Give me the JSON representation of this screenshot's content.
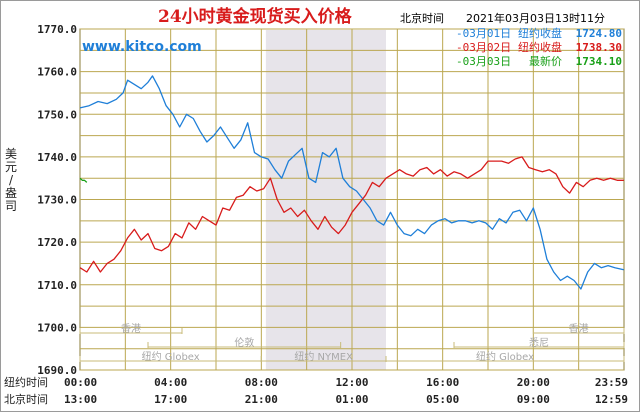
{
  "header": {
    "title": "24小时黄金现货买入价格",
    "timezone_label": "北京时间",
    "timestamp": "2021年03月03日13时11分",
    "site": "www.kitco.com"
  },
  "legend": [
    {
      "date": "-03月01日",
      "label": "纽约收盘",
      "value": "1724.80",
      "color": "#1f7fd8"
    },
    {
      "date": "-03月02日",
      "label": "纽约收盘",
      "value": "1738.30",
      "color": "#d81c1c"
    },
    {
      "date": "-03月03日",
      "label": "最新价",
      "value": "1734.10",
      "color": "#18a018"
    }
  ],
  "yaxis_label_chars": [
    "美",
    "元",
    "/",
    "盎",
    "司"
  ],
  "xaxis_rows": [
    {
      "label": "纽约时间",
      "ticks": [
        "00:00",
        "04:00",
        "08:00",
        "12:00",
        "16:00",
        "20:00",
        "23:59"
      ]
    },
    {
      "label": "北京时间",
      "ticks": [
        "13:00",
        "17:00",
        "21:00",
        "01:00",
        "05:00",
        "09:00",
        "12:59"
      ]
    }
  ],
  "markets": [
    {
      "name": "香港",
      "start": 0,
      "end": 4.5,
      "row": 0
    },
    {
      "name": "香港",
      "start": 20,
      "end": 24,
      "row": 0
    },
    {
      "name": "伦敦",
      "start": 3,
      "end": 11.5,
      "row": 1
    },
    {
      "name": "悉尼",
      "start": 16.5,
      "end": 24,
      "row": 1
    },
    {
      "name": "纽约 Globex",
      "start": 0,
      "end": 8,
      "row": 2
    },
    {
      "name": "纽约 NYMEX",
      "start": 8,
      "end": 13.5,
      "row": 2
    },
    {
      "name": "纽约 Globex",
      "start": 13.5,
      "end": 24,
      "row": 2
    }
  ],
  "chart_data": {
    "type": "line",
    "title": "24小时黄金现货买入价格",
    "ylabel": "美元/盎司",
    "xlabel": "",
    "ylim": [
      1690,
      1770
    ],
    "xlim": [
      0,
      24
    ],
    "y_ticks": [
      "1690.0",
      "1700.0",
      "1710.0",
      "1720.0",
      "1730.0",
      "1740.0",
      "1750.0",
      "1760.0",
      "1770.0"
    ],
    "shaded_range": [
      8.2,
      13.5
    ],
    "grid": true,
    "series": [
      {
        "name": "03月01日",
        "color": "#1f7fd8",
        "x": [
          0,
          0.4,
          0.8,
          1.2,
          1.6,
          1.9,
          2.1,
          2.4,
          2.7,
          3.0,
          3.2,
          3.5,
          3.8,
          4.1,
          4.4,
          4.7,
          5.0,
          5.3,
          5.6,
          5.9,
          6.2,
          6.5,
          6.8,
          7.1,
          7.4,
          7.7,
          8.0,
          8.3,
          8.6,
          8.9,
          9.2,
          9.5,
          9.8,
          10.1,
          10.4,
          10.7,
          11.0,
          11.3,
          11.6,
          11.9,
          12.2,
          12.5,
          12.8,
          13.1,
          13.4,
          13.7,
          14.0,
          14.3,
          14.6,
          14.9,
          15.2,
          15.5,
          15.8,
          16.1,
          16.4,
          16.7,
          17.0,
          17.3,
          17.6,
          17.9,
          18.2,
          18.5,
          18.8,
          19.1,
          19.4,
          19.7,
          20.0,
          20.3,
          20.6,
          20.9,
          21.2,
          21.5,
          21.8,
          22.1,
          22.4,
          22.7,
          23.0,
          23.3,
          23.6,
          23.99
        ],
        "y": [
          1751.5,
          1752,
          1753,
          1752.5,
          1753.5,
          1755,
          1758,
          1757,
          1756,
          1757.5,
          1759,
          1756,
          1752,
          1750,
          1747,
          1750,
          1749,
          1746,
          1743.5,
          1745,
          1747,
          1744.5,
          1742,
          1744,
          1748,
          1741,
          1740,
          1739.5,
          1737,
          1735,
          1739,
          1740.5,
          1742,
          1735,
          1734,
          1741,
          1740,
          1742,
          1735,
          1733,
          1732,
          1730,
          1728,
          1725,
          1724,
          1727,
          1724,
          1722,
          1721.5,
          1723,
          1722,
          1724,
          1725,
          1725.5,
          1724.5,
          1725,
          1725,
          1724.5,
          1725,
          1724.5,
          1723,
          1725.5,
          1724.5,
          1727,
          1727.5,
          1725,
          1728,
          1723,
          1716,
          1713,
          1711,
          1712,
          1711,
          1709,
          1713,
          1715,
          1714,
          1714.5,
          1714,
          1713.5
        ]
      },
      {
        "name": "03月02日",
        "color": "#d81c1c",
        "x": [
          0,
          0.3,
          0.6,
          0.9,
          1.2,
          1.5,
          1.8,
          2.1,
          2.4,
          2.7,
          3.0,
          3.3,
          3.6,
          3.9,
          4.2,
          4.5,
          4.8,
          5.1,
          5.4,
          5.7,
          6.0,
          6.3,
          6.6,
          6.9,
          7.2,
          7.5,
          7.8,
          8.1,
          8.4,
          8.7,
          9.0,
          9.3,
          9.6,
          9.9,
          10.2,
          10.5,
          10.8,
          11.1,
          11.4,
          11.7,
          12.0,
          12.3,
          12.6,
          12.9,
          13.2,
          13.5,
          13.8,
          14.1,
          14.4,
          14.7,
          15.0,
          15.3,
          15.6,
          15.9,
          16.2,
          16.5,
          16.8,
          17.1,
          17.4,
          17.7,
          18.0,
          18.3,
          18.6,
          18.9,
          19.2,
          19.5,
          19.8,
          20.1,
          20.4,
          20.7,
          21.0,
          21.3,
          21.6,
          21.9,
          22.2,
          22.5,
          22.8,
          23.1,
          23.4,
          23.7,
          23.99
        ],
        "y": [
          1714,
          1713,
          1715.5,
          1713,
          1715,
          1716,
          1718,
          1721,
          1723,
          1720.5,
          1722,
          1718.5,
          1718,
          1719,
          1722,
          1721,
          1724.5,
          1723,
          1726,
          1725,
          1724,
          1728,
          1727.5,
          1730.5,
          1731,
          1733,
          1732,
          1732.5,
          1735,
          1730,
          1727,
          1728,
          1726,
          1727.5,
          1725,
          1723,
          1726,
          1723.5,
          1722,
          1724,
          1727,
          1729,
          1731,
          1734,
          1733,
          1735,
          1736,
          1737,
          1736,
          1735.5,
          1737,
          1737.5,
          1736,
          1737,
          1735.5,
          1736.5,
          1736,
          1735,
          1736,
          1737,
          1739,
          1739,
          1739,
          1738.5,
          1739.5,
          1740,
          1737.5,
          1737,
          1736.5,
          1737,
          1736,
          1733,
          1731.5,
          1734,
          1733,
          1734.5,
          1735,
          1734.5,
          1735,
          1734.5,
          1734.5
        ]
      },
      {
        "name": "03月03日",
        "color": "#18a018",
        "x": [
          0,
          0.1,
          0.2,
          0.3
        ],
        "y": [
          1735,
          1734.5,
          1734.5,
          1734
        ]
      }
    ]
  }
}
